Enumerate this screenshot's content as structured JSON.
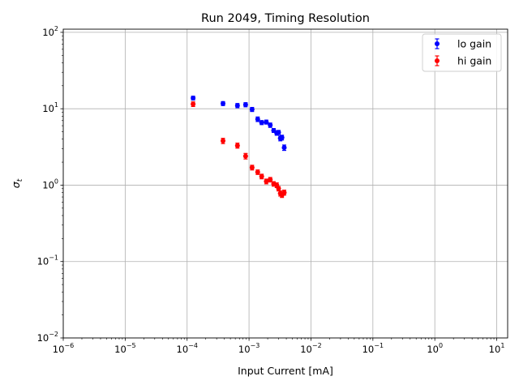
{
  "chart_data": {
    "type": "scatter",
    "title": "Run 2049, Timing Resolution",
    "xlabel": "Input Current [mA]",
    "ylabel": "σ_t",
    "ylabel_base": "σ",
    "ylabel_sub": "t",
    "xscale": "log",
    "yscale": "log",
    "xlim": [
      1e-06,
      15
    ],
    "ylim": [
      0.01,
      110
    ],
    "grid": true,
    "legend_loc": "upper right",
    "x_ticks": [
      {
        "value": 1e-06,
        "base": "10",
        "exp": "−6"
      },
      {
        "value": 1e-05,
        "base": "10",
        "exp": "−5"
      },
      {
        "value": 0.0001,
        "base": "10",
        "exp": "−4"
      },
      {
        "value": 0.001,
        "base": "10",
        "exp": "−3"
      },
      {
        "value": 0.01,
        "base": "10",
        "exp": "−2"
      },
      {
        "value": 0.1,
        "base": "10",
        "exp": "−1"
      },
      {
        "value": 1,
        "base": "10",
        "exp": "0"
      },
      {
        "value": 10,
        "base": "10",
        "exp": "1"
      }
    ],
    "y_ticks": [
      {
        "value": 0.01,
        "base": "10",
        "exp": "−2"
      },
      {
        "value": 0.1,
        "base": "10",
        "exp": "−1"
      },
      {
        "value": 1,
        "base": "10",
        "exp": "0"
      },
      {
        "value": 10,
        "base": "10",
        "exp": "1"
      },
      {
        "value": 100,
        "base": "10",
        "exp": "2"
      }
    ],
    "series": [
      {
        "name": "lo gain",
        "color": "#0000ff",
        "points": [
          {
            "x": 0.000125,
            "y": 13.8,
            "err": 0.8
          },
          {
            "x": 0.00038,
            "y": 11.7,
            "err": 0.7
          },
          {
            "x": 0.00065,
            "y": 11.0,
            "err": 0.7
          },
          {
            "x": 0.00088,
            "y": 11.3,
            "err": 0.7
          },
          {
            "x": 0.00112,
            "y": 9.8,
            "err": 0.6
          },
          {
            "x": 0.00138,
            "y": 7.3,
            "err": 0.5
          },
          {
            "x": 0.0016,
            "y": 6.6,
            "err": 0.4
          },
          {
            "x": 0.0019,
            "y": 6.7,
            "err": 0.4
          },
          {
            "x": 0.0022,
            "y": 6.1,
            "err": 0.4
          },
          {
            "x": 0.0025,
            "y": 5.2,
            "err": 0.3
          },
          {
            "x": 0.0028,
            "y": 4.8,
            "err": 0.3
          },
          {
            "x": 0.003,
            "y": 4.9,
            "err": 0.3
          },
          {
            "x": 0.0032,
            "y": 4.1,
            "err": 0.3
          },
          {
            "x": 0.0034,
            "y": 4.2,
            "err": 0.3
          },
          {
            "x": 0.0037,
            "y": 3.1,
            "err": 0.25
          }
        ]
      },
      {
        "name": "hi gain",
        "color": "#ff0000",
        "points": [
          {
            "x": 0.000125,
            "y": 11.5,
            "err": 0.8
          },
          {
            "x": 0.00038,
            "y": 3.8,
            "err": 0.3
          },
          {
            "x": 0.00065,
            "y": 3.3,
            "err": 0.25
          },
          {
            "x": 0.00088,
            "y": 2.4,
            "err": 0.2
          },
          {
            "x": 0.00112,
            "y": 1.7,
            "err": 0.12
          },
          {
            "x": 0.00138,
            "y": 1.48,
            "err": 0.1
          },
          {
            "x": 0.0016,
            "y": 1.3,
            "err": 0.09
          },
          {
            "x": 0.0019,
            "y": 1.12,
            "err": 0.08
          },
          {
            "x": 0.0022,
            "y": 1.18,
            "err": 0.08
          },
          {
            "x": 0.0025,
            "y": 1.04,
            "err": 0.07
          },
          {
            "x": 0.0028,
            "y": 1.0,
            "err": 0.07
          },
          {
            "x": 0.003,
            "y": 0.9,
            "err": 0.06
          },
          {
            "x": 0.0032,
            "y": 0.78,
            "err": 0.06
          },
          {
            "x": 0.0034,
            "y": 0.74,
            "err": 0.05
          },
          {
            "x": 0.0037,
            "y": 0.8,
            "err": 0.06
          }
        ]
      }
    ]
  }
}
